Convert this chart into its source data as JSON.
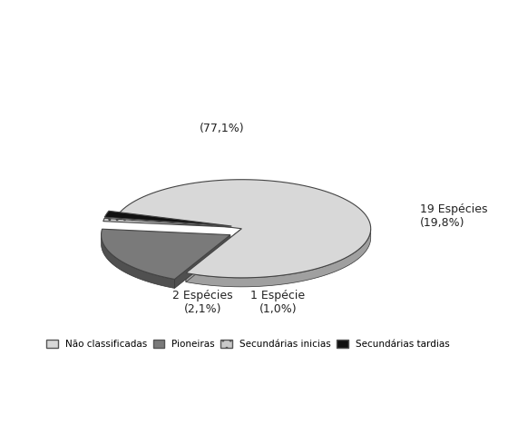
{
  "labels": [
    "Não classificadas",
    "Pioneiras",
    "Secundárias inicias",
    "Secundárias tardias"
  ],
  "values": [
    77.1,
    19.8,
    1.0,
    2.1
  ],
  "colors": [
    "#d8d8d8",
    "#7a7a7a",
    "#c8c8c8",
    "#111111"
  ],
  "shadow_colors": [
    "#a0a0a0",
    "#505050",
    "#909090",
    "#000000"
  ],
  "explode": [
    0.0,
    0.1,
    0.08,
    0.08
  ],
  "legend_labels": [
    "Não classificadas",
    "Pioneiras",
    "Secundárias inicias",
    "Secundárias tardias"
  ],
  "legend_colors": [
    "#d8d8d8",
    "#7a7a7a",
    "#c8c8c8",
    "#111111"
  ],
  "background_color": "#ffffff",
  "startangle": 162,
  "depth": 0.15,
  "annotation_77": "(77,1%)",
  "annotation_19": "19 Espécies\n(19,8%)",
  "annotation_1": "1 Espécie\n(1,0%)",
  "annotation_2": "2 Espécies\n(2,1%)"
}
